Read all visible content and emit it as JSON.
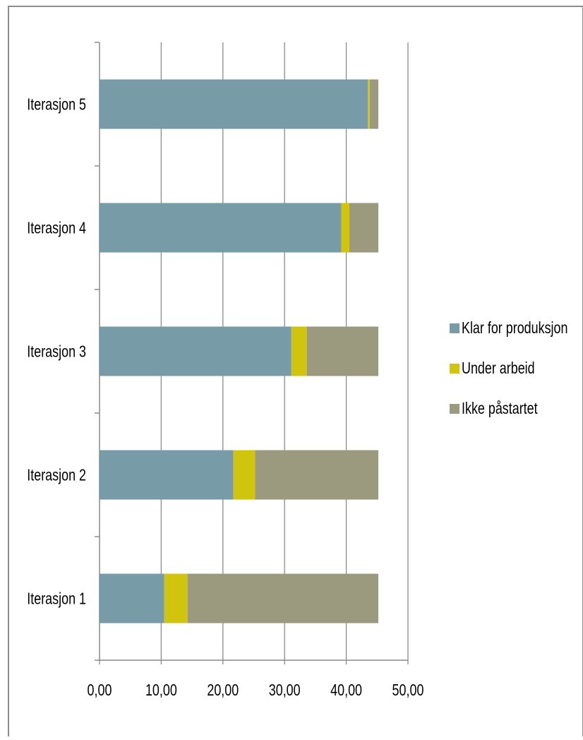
{
  "chart_data": {
    "type": "bar",
    "orientation": "horizontal",
    "stacked": true,
    "categories": [
      "Iterasjon 1",
      "Iterasjon 2",
      "Iterasjon 3",
      "Iterasjon 4",
      "Iterasjon 5"
    ],
    "series": [
      {
        "name": "Klar for produksjon",
        "color": "#789ca7",
        "values": [
          10.5,
          21.7,
          31.1,
          39.2,
          43.5
        ]
      },
      {
        "name": "Under arbeid",
        "color": "#d0c40e",
        "values": [
          3.8,
          3.5,
          2.5,
          1.3,
          0.3
        ]
      },
      {
        "name": "Ikke påstartet",
        "color": "#9c9a7e",
        "values": [
          30.9,
          20.0,
          11.6,
          4.7,
          1.4
        ]
      }
    ],
    "x_ticks": [
      "0,00",
      "10,00",
      "20,00",
      "30,00",
      "40,00",
      "50,00"
    ],
    "xlim": [
      0,
      50
    ],
    "grid": "vertical",
    "legend_position": "right",
    "title": "",
    "xlabel": "",
    "ylabel": ""
  }
}
